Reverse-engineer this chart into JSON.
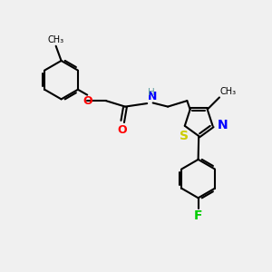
{
  "bg_color": "#f0f0f0",
  "atom_colors": {
    "C": "#000000",
    "H": "#5f9ea0",
    "N": "#0000ff",
    "O": "#ff0000",
    "S": "#cccc00",
    "F": "#00cc00"
  },
  "bond_color": "#000000",
  "figsize": [
    3.0,
    3.0
  ],
  "dpi": 100,
  "bond_lw": 1.5,
  "ring_r": 0.72,
  "thz_r": 0.55
}
